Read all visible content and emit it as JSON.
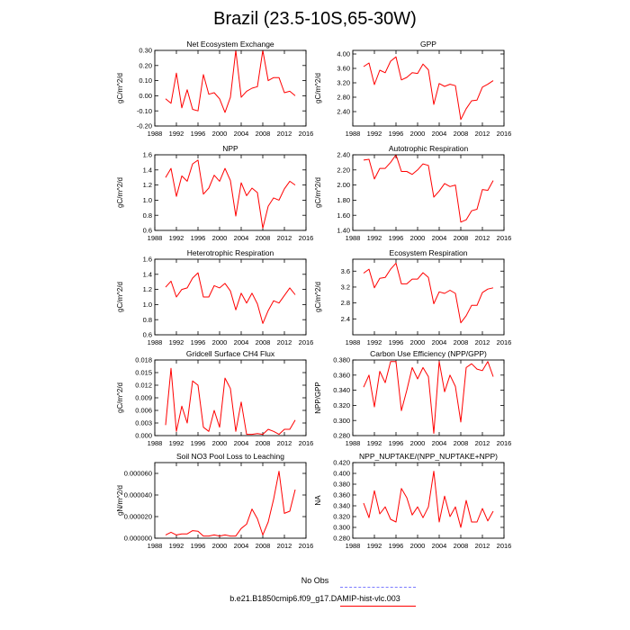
{
  "title": "Brazil (23.5-10S,65-30W)",
  "legend": {
    "obs_label": "No Obs",
    "obs_color": "#7b7bff",
    "run_label": "b.e21.B1850cmip6.f09_g17.DAMIP-hist-vlc.003",
    "run_color": "#ff0000"
  },
  "chart_data": [
    {
      "type": "line",
      "title": "Net Ecosystem Exchange",
      "ylabel": "gC/m^2/d",
      "xlim": [
        1988,
        2016
      ],
      "xticks": [
        1988,
        1992,
        1996,
        2000,
        2004,
        2008,
        2012,
        2016
      ],
      "ylim": [
        -0.2,
        0.3
      ],
      "yticks": [
        "-0.20",
        "-0.10",
        "0.00",
        "0.10",
        "0.20",
        "0.30"
      ],
      "x": [
        1990,
        1991,
        1992,
        1993,
        1994,
        1995,
        1996,
        1997,
        1998,
        1999,
        2000,
        2001,
        2002,
        2003,
        2004,
        2005,
        2006,
        2007,
        2008,
        2009,
        2010,
        2011,
        2012,
        2013,
        2014
      ],
      "values": [
        -0.02,
        -0.05,
        0.15,
        -0.08,
        0.04,
        -0.09,
        -0.1,
        0.14,
        0.01,
        0.02,
        -0.02,
        -0.11,
        -0.01,
        0.3,
        -0.01,
        0.03,
        0.05,
        0.06,
        0.3,
        0.1,
        0.12,
        0.12,
        0.02,
        0.03,
        0.0
      ]
    },
    {
      "type": "line",
      "title": "GPP",
      "ylabel": "gC/m^2/d",
      "xlim": [
        1988,
        2016
      ],
      "xticks": [
        1988,
        1992,
        1996,
        2000,
        2004,
        2008,
        2012,
        2016
      ],
      "ylim": [
        2.0,
        4.1
      ],
      "yticks": [
        "2.40",
        "2.80",
        "3.20",
        "3.60",
        "4.00"
      ],
      "x": [
        1990,
        1991,
        1992,
        1993,
        1994,
        1995,
        1996,
        1997,
        1998,
        1999,
        2000,
        2001,
        2002,
        2003,
        2004,
        2005,
        2006,
        2007,
        2008,
        2009,
        2010,
        2011,
        2012,
        2013,
        2014
      ],
      "values": [
        3.65,
        3.75,
        3.15,
        3.55,
        3.48,
        3.8,
        3.92,
        3.28,
        3.35,
        3.48,
        3.46,
        3.72,
        3.56,
        2.6,
        3.18,
        3.1,
        3.16,
        3.12,
        2.18,
        2.48,
        2.7,
        2.72,
        3.08,
        3.16,
        3.26
      ]
    },
    {
      "type": "line",
      "title": "NPP",
      "ylabel": "gC/m^2/d",
      "xlim": [
        1988,
        2016
      ],
      "xticks": [
        1988,
        1992,
        1996,
        2000,
        2004,
        2008,
        2012,
        2016
      ],
      "ylim": [
        0.6,
        1.6
      ],
      "yticks": [
        "0.6",
        "0.8",
        "1.0",
        "1.2",
        "1.4",
        "1.6"
      ],
      "x": [
        1990,
        1991,
        1992,
        1993,
        1994,
        1995,
        1996,
        1997,
        1998,
        1999,
        2000,
        2001,
        2002,
        2003,
        2004,
        2005,
        2006,
        2007,
        2008,
        2009,
        2010,
        2011,
        2012,
        2013,
        2014
      ],
      "values": [
        1.3,
        1.42,
        1.05,
        1.32,
        1.25,
        1.48,
        1.53,
        1.08,
        1.16,
        1.33,
        1.25,
        1.42,
        1.26,
        0.79,
        1.23,
        1.06,
        1.16,
        1.1,
        0.63,
        0.92,
        1.03,
        1.0,
        1.15,
        1.25,
        1.2
      ]
    },
    {
      "type": "line",
      "title": "Autotrophic Respiration",
      "ylabel": "gC/m^2/d",
      "xlim": [
        1988,
        2016
      ],
      "xticks": [
        1988,
        1992,
        1996,
        2000,
        2004,
        2008,
        2012,
        2016
      ],
      "ylim": [
        1.4,
        2.4
      ],
      "yticks": [
        "1.40",
        "1.60",
        "1.80",
        "2.00",
        "2.20",
        "2.40"
      ],
      "x": [
        1990,
        1991,
        1992,
        1993,
        1994,
        1995,
        1996,
        1997,
        1998,
        1999,
        2000,
        2001,
        2002,
        2003,
        2004,
        2005,
        2006,
        2007,
        2008,
        2009,
        2010,
        2011,
        2012,
        2013,
        2014
      ],
      "values": [
        2.33,
        2.34,
        2.08,
        2.22,
        2.22,
        2.3,
        2.4,
        2.18,
        2.18,
        2.14,
        2.2,
        2.28,
        2.26,
        1.84,
        1.92,
        2.02,
        1.98,
        2.0,
        1.51,
        1.54,
        1.66,
        1.68,
        1.94,
        1.93,
        2.06
      ]
    },
    {
      "type": "line",
      "title": "Heterotrophic Respiration",
      "ylabel": "gC/m^2/d",
      "xlim": [
        1988,
        2016
      ],
      "xticks": [
        1988,
        1992,
        1996,
        2000,
        2004,
        2008,
        2012,
        2016
      ],
      "ylim": [
        0.6,
        1.6
      ],
      "yticks": [
        "0.6",
        "0.8",
        "1.0",
        "1.2",
        "1.4",
        "1.6"
      ],
      "x": [
        1990,
        1991,
        1992,
        1993,
        1994,
        1995,
        1996,
        1997,
        1998,
        1999,
        2000,
        2001,
        2002,
        2003,
        2004,
        2005,
        2006,
        2007,
        2008,
        2009,
        2010,
        2011,
        2012,
        2013,
        2014
      ],
      "values": [
        1.23,
        1.31,
        1.1,
        1.2,
        1.22,
        1.35,
        1.42,
        1.1,
        1.1,
        1.25,
        1.22,
        1.28,
        1.18,
        0.93,
        1.15,
        1.02,
        1.15,
        1.01,
        0.75,
        0.92,
        1.05,
        1.02,
        1.12,
        1.22,
        1.13
      ]
    },
    {
      "type": "line",
      "title": "Ecosystem Respiration",
      "ylabel": "gC/m^2/d",
      "xlim": [
        1988,
        2016
      ],
      "xticks": [
        1988,
        1992,
        1996,
        2000,
        2004,
        2008,
        2012,
        2016
      ],
      "ylim": [
        2.0,
        3.9
      ],
      "yticks": [
        "2.4",
        "2.8",
        "3.2",
        "3.6"
      ],
      "x": [
        1990,
        1991,
        1992,
        1993,
        1994,
        1995,
        1996,
        1997,
        1998,
        1999,
        2000,
        2001,
        2002,
        2003,
        2004,
        2005,
        2006,
        2007,
        2008,
        2009,
        2010,
        2011,
        2012,
        2013,
        2014
      ],
      "values": [
        3.55,
        3.65,
        3.18,
        3.42,
        3.44,
        3.65,
        3.8,
        3.28,
        3.28,
        3.4,
        3.4,
        3.56,
        3.44,
        2.78,
        3.08,
        3.04,
        3.12,
        3.04,
        2.3,
        2.48,
        2.74,
        2.74,
        3.06,
        3.15,
        3.18
      ]
    },
    {
      "type": "line",
      "title": "Gridcell Surface CH4 Flux",
      "ylabel": "gC/m^2/d",
      "xlim": [
        1988,
        2016
      ],
      "xticks": [
        1988,
        1992,
        1996,
        2000,
        2004,
        2008,
        2012,
        2016
      ],
      "ylim": [
        0,
        0.018
      ],
      "yticks": [
        "0.000",
        "0.003",
        "0.006",
        "0.009",
        "0.012",
        "0.015",
        "0.018"
      ],
      "x": [
        1990,
        1991,
        1992,
        1993,
        1994,
        1995,
        1996,
        1997,
        1998,
        1999,
        2000,
        2001,
        2002,
        2003,
        2004,
        2005,
        2006,
        2007,
        2008,
        2009,
        2010,
        2011,
        2012,
        2013,
        2014
      ],
      "values": [
        0.0025,
        0.016,
        0.001,
        0.007,
        0.003,
        0.013,
        0.012,
        0.002,
        0.001,
        0.006,
        0.002,
        0.0137,
        0.0112,
        0.001,
        0.008,
        0.0003,
        0.0003,
        0.0005,
        0.0003,
        0.0015,
        0.001,
        0.0003,
        0.0015,
        0.0015,
        0.0037
      ]
    },
    {
      "type": "line",
      "title": "Carbon Use Efficiency (NPP/GPP)",
      "ylabel": "NPP/GPP",
      "xlim": [
        1988,
        2016
      ],
      "xticks": [
        1988,
        1992,
        1996,
        2000,
        2004,
        2008,
        2012,
        2016
      ],
      "ylim": [
        0.28,
        0.38
      ],
      "yticks": [
        "0.280",
        "0.300",
        "0.320",
        "0.340",
        "0.360",
        "0.380"
      ],
      "x": [
        1990,
        1991,
        1992,
        1993,
        1994,
        1995,
        1996,
        1997,
        1998,
        1999,
        2000,
        2001,
        2002,
        2003,
        2004,
        2005,
        2006,
        2007,
        2008,
        2009,
        2010,
        2011,
        2012,
        2013,
        2014
      ],
      "values": [
        0.344,
        0.36,
        0.318,
        0.365,
        0.35,
        0.378,
        0.378,
        0.313,
        0.34,
        0.37,
        0.355,
        0.37,
        0.358,
        0.283,
        0.378,
        0.338,
        0.36,
        0.345,
        0.298,
        0.37,
        0.375,
        0.368,
        0.366,
        0.378,
        0.358
      ]
    },
    {
      "type": "line",
      "title": "Soil NO3 Pool Loss to Leaching",
      "ylabel": "gN/m^2/d",
      "xlim": [
        1988,
        2016
      ],
      "xticks": [
        1988,
        1992,
        1996,
        2000,
        2004,
        2008,
        2012,
        2016
      ],
      "ylim": [
        0,
        7e-05
      ],
      "yticks": [
        "0.000000",
        "0.000020",
        "0.000040",
        "0.000060"
      ],
      "x": [
        1990,
        1991,
        1992,
        1993,
        1994,
        1995,
        1996,
        1997,
        1998,
        1999,
        2000,
        2001,
        2002,
        2003,
        2004,
        2005,
        2006,
        2007,
        2008,
        2009,
        2010,
        2011,
        2012,
        2013,
        2014
      ],
      "values": [
        3e-06,
        5.5e-06,
        3e-06,
        4e-06,
        4e-06,
        7e-06,
        6.5e-06,
        2e-06,
        2e-06,
        3e-06,
        2e-06,
        3e-06,
        2e-06,
        2e-06,
        9e-06,
        1.3e-05,
        2.7e-05,
        1.8e-05,
        3e-06,
        1.5e-05,
        3.6e-05,
        6.2e-05,
        2.3e-05,
        2.5e-05,
        4.5e-05
      ]
    },
    {
      "type": "line",
      "title": "NPP_NUPTAKE/(NPP_NUPTAKE+NPP)",
      "ylabel": "NA",
      "xlim": [
        1988,
        2016
      ],
      "xticks": [
        1988,
        1992,
        1996,
        2000,
        2004,
        2008,
        2012,
        2016
      ],
      "ylim": [
        0.28,
        0.42
      ],
      "yticks": [
        "0.280",
        "0.300",
        "0.320",
        "0.340",
        "0.360",
        "0.380",
        "0.400",
        "0.420"
      ],
      "x": [
        1990,
        1991,
        1992,
        1993,
        1994,
        1995,
        1996,
        1997,
        1998,
        1999,
        2000,
        2001,
        2002,
        2003,
        2004,
        2005,
        2006,
        2007,
        2008,
        2009,
        2010,
        2011,
        2012,
        2013,
        2014
      ],
      "values": [
        0.345,
        0.318,
        0.368,
        0.325,
        0.338,
        0.315,
        0.31,
        0.372,
        0.355,
        0.323,
        0.338,
        0.318,
        0.338,
        0.404,
        0.31,
        0.358,
        0.32,
        0.338,
        0.3,
        0.35,
        0.31,
        0.31,
        0.335,
        0.312,
        0.33
      ]
    }
  ]
}
